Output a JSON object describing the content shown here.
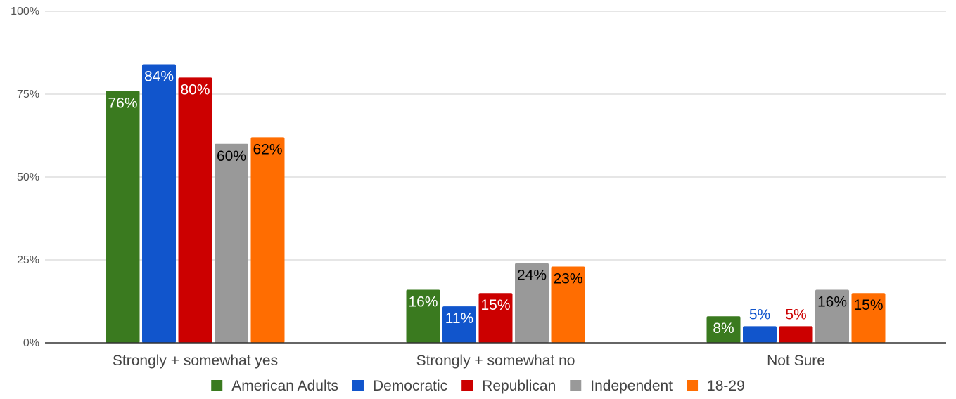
{
  "chart_data": {
    "type": "bar",
    "title": "",
    "xlabel": "",
    "ylabel": "",
    "ylim": [
      0,
      100
    ],
    "yticks": [
      0,
      25,
      50,
      75,
      100
    ],
    "ytick_labels": [
      "0%",
      "25%",
      "50%",
      "75%",
      "100%"
    ],
    "value_suffix": "%",
    "grid": true,
    "legend_position": "bottom",
    "categories": [
      "Strongly + somewhat yes",
      "Strongly + somewhat no",
      "Not Sure"
    ],
    "series": [
      {
        "name": "American Adults",
        "color": "#3a7a1f",
        "values": [
          76,
          16,
          8
        ]
      },
      {
        "name": "Democratic",
        "color": "#1155cc",
        "values": [
          84,
          11,
          5
        ]
      },
      {
        "name": "Republican",
        "color": "#cc0000",
        "values": [
          80,
          15,
          5
        ]
      },
      {
        "name": "Independent",
        "color": "#999999",
        "values": [
          60,
          24,
          16
        ]
      },
      {
        "name": "18-29",
        "color": "#ff6d01",
        "values": [
          62,
          23,
          15
        ]
      }
    ]
  }
}
